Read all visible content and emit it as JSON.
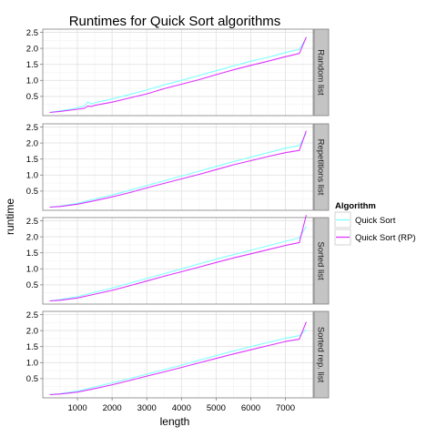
{
  "chart_data": {
    "type": "line",
    "title": "Runtimes for Quick Sort algorithms",
    "xlabel": "length",
    "ylabel": "runtime",
    "xlim": [
      0,
      7800
    ],
    "ylim": [
      -0.1,
      2.6
    ],
    "x_ticks": [
      1000,
      2000,
      3000,
      4000,
      5000,
      6000,
      7000
    ],
    "y_ticks": [
      0.5,
      1.0,
      1.5,
      2.0,
      2.5
    ],
    "legend": {
      "title": "Algorithm",
      "position": "right",
      "entries": [
        {
          "label": "Quick Sort",
          "color": "#7fffff"
        },
        {
          "label": "Quick Sort (RP)",
          "color": "#dd33ff"
        }
      ]
    },
    "grid": true,
    "facets": [
      {
        "label": "Random list",
        "series": [
          {
            "name": "Quick Sort",
            "color": "#7fffff",
            "x": [
              200,
              500,
              800,
              1000,
              1200,
              1300,
              1400,
              1500,
              2000,
              2500,
              3000,
              3500,
              4000,
              4500,
              5000,
              5500,
              6000,
              6500,
              7000,
              7400,
              7600
            ],
            "y": [
              0.0,
              0.05,
              0.1,
              0.15,
              0.2,
              0.33,
              0.26,
              0.3,
              0.42,
              0.56,
              0.7,
              0.86,
              1.0,
              1.15,
              1.3,
              1.45,
              1.6,
              1.72,
              1.87,
              1.97,
              2.33
            ]
          },
          {
            "name": "Quick Sort (RP)",
            "color": "#dd33ff",
            "x": [
              200,
              500,
              800,
              1000,
              1200,
              1300,
              1400,
              1500,
              2000,
              2500,
              3000,
              3500,
              4000,
              4500,
              5000,
              5500,
              6000,
              6500,
              7000,
              7400,
              7600
            ],
            "y": [
              0.0,
              0.03,
              0.07,
              0.1,
              0.13,
              0.2,
              0.18,
              0.22,
              0.32,
              0.45,
              0.58,
              0.74,
              0.88,
              1.02,
              1.18,
              1.33,
              1.47,
              1.6,
              1.74,
              1.84,
              2.35
            ]
          }
        ]
      },
      {
        "label": "Repetitions list",
        "series": [
          {
            "name": "Quick Sort",
            "color": "#7fffff",
            "x": [
              200,
              500,
              1000,
              1500,
              2000,
              2500,
              3000,
              3500,
              4000,
              4500,
              5000,
              5500,
              6000,
              6500,
              7000,
              7400,
              7600
            ],
            "y": [
              0.0,
              0.03,
              0.12,
              0.25,
              0.38,
              0.52,
              0.67,
              0.82,
              0.97,
              1.12,
              1.27,
              1.42,
              1.56,
              1.7,
              1.84,
              1.92,
              2.3
            ]
          },
          {
            "name": "Quick Sort (RP)",
            "color": "#dd33ff",
            "x": [
              200,
              500,
              1000,
              1500,
              2000,
              2500,
              3000,
              3500,
              4000,
              4500,
              5000,
              5500,
              6000,
              6500,
              7000,
              7400,
              7600
            ],
            "y": [
              0.0,
              0.02,
              0.09,
              0.2,
              0.32,
              0.45,
              0.6,
              0.74,
              0.88,
              1.02,
              1.17,
              1.32,
              1.45,
              1.58,
              1.7,
              1.77,
              2.38
            ]
          }
        ]
      },
      {
        "label": "Sorted list",
        "series": [
          {
            "name": "Quick Sort",
            "color": "#7fffff",
            "x": [
              200,
              500,
              1000,
              1500,
              2000,
              2500,
              3000,
              3500,
              4000,
              4500,
              5000,
              5500,
              6000,
              6500,
              7000,
              7400,
              7600
            ],
            "y": [
              0.0,
              0.04,
              0.13,
              0.27,
              0.4,
              0.55,
              0.7,
              0.85,
              1.0,
              1.15,
              1.3,
              1.44,
              1.58,
              1.72,
              1.86,
              1.96,
              2.33
            ]
          },
          {
            "name": "Quick Sort (RP)",
            "color": "#dd33ff",
            "x": [
              200,
              500,
              1000,
              1500,
              2000,
              2500,
              3000,
              3500,
              4000,
              4500,
              5000,
              5500,
              6000,
              6500,
              7000,
              7400,
              7600
            ],
            "y": [
              0.0,
              0.02,
              0.09,
              0.21,
              0.33,
              0.47,
              0.62,
              0.77,
              0.91,
              1.05,
              1.2,
              1.34,
              1.47,
              1.6,
              1.73,
              1.82,
              2.68
            ]
          }
        ]
      },
      {
        "label": "Sorted rep. list",
        "series": [
          {
            "name": "Quick Sort",
            "color": "#7fffff",
            "x": [
              200,
              500,
              1000,
              1500,
              2000,
              2500,
              3000,
              3500,
              4000,
              4500,
              5000,
              5500,
              6000,
              6500,
              7000,
              7400,
              7600
            ],
            "y": [
              0.0,
              0.03,
              0.11,
              0.24,
              0.37,
              0.5,
              0.64,
              0.78,
              0.92,
              1.07,
              1.22,
              1.36,
              1.5,
              1.63,
              1.76,
              1.84,
              2.03
            ]
          },
          {
            "name": "Quick Sort (RP)",
            "color": "#dd33ff",
            "x": [
              200,
              500,
              1000,
              1500,
              2000,
              2500,
              3000,
              3500,
              4000,
              4500,
              5000,
              5500,
              6000,
              6500,
              7000,
              7400,
              7600
            ],
            "y": [
              0.0,
              0.02,
              0.08,
              0.19,
              0.31,
              0.44,
              0.58,
              0.71,
              0.85,
              0.99,
              1.13,
              1.27,
              1.4,
              1.53,
              1.66,
              1.73,
              2.27
            ]
          }
        ]
      }
    ]
  }
}
